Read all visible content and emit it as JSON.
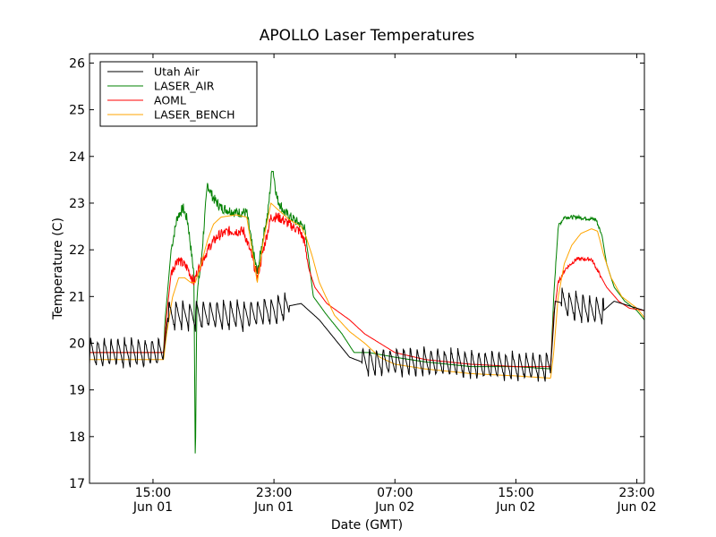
{
  "chart_data": {
    "type": "line",
    "title": "APOLLO Laser Temperatures",
    "xlabel": "Date (GMT)",
    "ylabel": "Temperature (C)",
    "ylim": [
      17,
      26.2
    ],
    "xlim_hours": [
      10.8,
      47.5
    ],
    "x_unit": "hours since Jun 01 00:00 GMT",
    "yticks": [
      17,
      18,
      19,
      20,
      21,
      22,
      23,
      24,
      25,
      26
    ],
    "xticks": [
      {
        "hour": 15,
        "time": "15:00",
        "date": "Jun 01"
      },
      {
        "hour": 23,
        "time": "23:00",
        "date": "Jun 01"
      },
      {
        "hour": 31,
        "time": "07:00",
        "date": "Jun 02"
      },
      {
        "hour": 39,
        "time": "15:00",
        "date": "Jun 02"
      },
      {
        "hour": 47,
        "time": "23:00",
        "date": "Jun 02"
      }
    ],
    "grid": false,
    "legend_position": "top-left",
    "series": [
      {
        "name": "Utah Air",
        "color": "#000000",
        "oscillation": {
          "amplitude": 0.6,
          "period_hours": 0.45,
          "ranges": [
            [
              10.8,
              15.7
            ],
            [
              16.0,
              24.0
            ],
            [
              28.8,
              41.3
            ],
            [
              42.0,
              44.8
            ]
          ]
        },
        "points": [
          [
            10.8,
            19.8
          ],
          [
            15.7,
            19.8
          ],
          [
            16.0,
            20.6
          ],
          [
            19.5,
            20.6
          ],
          [
            21.0,
            20.6
          ],
          [
            23.0,
            20.7
          ],
          [
            24.0,
            20.8
          ],
          [
            24.8,
            20.85
          ],
          [
            26.0,
            20.5
          ],
          [
            27.0,
            20.1
          ],
          [
            28.0,
            19.7
          ],
          [
            28.8,
            19.6
          ],
          [
            30.0,
            19.6
          ],
          [
            33.0,
            19.6
          ],
          [
            36.0,
            19.55
          ],
          [
            39.0,
            19.5
          ],
          [
            41.3,
            19.5
          ],
          [
            41.6,
            20.9
          ],
          [
            44.0,
            20.7
          ],
          [
            44.8,
            20.7
          ],
          [
            45.5,
            20.9
          ],
          [
            47.5,
            20.7
          ]
        ]
      },
      {
        "name": "LASER_AIR",
        "color": "#008000",
        "points": [
          [
            10.8,
            19.8
          ],
          [
            15.7,
            19.8
          ],
          [
            15.8,
            20.5
          ],
          [
            16.2,
            22.0
          ],
          [
            16.6,
            22.7
          ],
          [
            17.0,
            22.9
          ],
          [
            17.3,
            22.6
          ],
          [
            17.7,
            21.5
          ],
          [
            17.8,
            17.3
          ],
          [
            17.9,
            21.0
          ],
          [
            18.2,
            21.8
          ],
          [
            18.6,
            23.4
          ],
          [
            19.0,
            23.1
          ],
          [
            19.5,
            22.9
          ],
          [
            20.5,
            22.8
          ],
          [
            21.2,
            22.8
          ],
          [
            21.6,
            22.0
          ],
          [
            21.9,
            21.5
          ],
          [
            22.3,
            22.3
          ],
          [
            22.6,
            22.8
          ],
          [
            22.9,
            23.8
          ],
          [
            23.2,
            23.1
          ],
          [
            23.7,
            22.8
          ],
          [
            24.5,
            22.6
          ],
          [
            25.0,
            22.5
          ],
          [
            25.3,
            21.8
          ],
          [
            25.6,
            21.0
          ],
          [
            26.5,
            20.6
          ],
          [
            27.5,
            20.2
          ],
          [
            28.3,
            19.8
          ],
          [
            29.3,
            19.8
          ],
          [
            31.0,
            19.7
          ],
          [
            33.0,
            19.6
          ],
          [
            36.0,
            19.5
          ],
          [
            39.0,
            19.5
          ],
          [
            41.3,
            19.45
          ],
          [
            41.5,
            21.0
          ],
          [
            41.8,
            22.5
          ],
          [
            42.2,
            22.7
          ],
          [
            43.0,
            22.7
          ],
          [
            44.3,
            22.65
          ],
          [
            44.7,
            22.3
          ],
          [
            45.0,
            21.7
          ],
          [
            45.5,
            21.2
          ],
          [
            46.2,
            20.9
          ],
          [
            47.0,
            20.7
          ],
          [
            47.5,
            20.5
          ]
        ]
      },
      {
        "name": "AOML",
        "color": "#ff0000",
        "points": [
          [
            10.8,
            19.8
          ],
          [
            15.7,
            19.8
          ],
          [
            15.9,
            20.6
          ],
          [
            16.2,
            21.5
          ],
          [
            16.6,
            21.8
          ],
          [
            17.0,
            21.7
          ],
          [
            17.3,
            21.6
          ],
          [
            17.7,
            21.3
          ],
          [
            17.9,
            21.5
          ],
          [
            18.3,
            21.8
          ],
          [
            18.8,
            22.1
          ],
          [
            19.3,
            22.3
          ],
          [
            20.0,
            22.4
          ],
          [
            21.0,
            22.4
          ],
          [
            21.5,
            21.9
          ],
          [
            21.9,
            21.4
          ],
          [
            22.3,
            22.0
          ],
          [
            22.8,
            22.7
          ],
          [
            23.3,
            22.7
          ],
          [
            24.0,
            22.55
          ],
          [
            24.7,
            22.4
          ],
          [
            25.0,
            22.2
          ],
          [
            25.3,
            21.6
          ],
          [
            25.7,
            21.2
          ],
          [
            26.5,
            20.85
          ],
          [
            28.0,
            20.5
          ],
          [
            29.0,
            20.2
          ],
          [
            30.0,
            20.0
          ],
          [
            31.0,
            19.8
          ],
          [
            33.0,
            19.65
          ],
          [
            36.0,
            19.55
          ],
          [
            39.0,
            19.5
          ],
          [
            41.3,
            19.5
          ],
          [
            41.5,
            20.6
          ],
          [
            41.8,
            21.3
          ],
          [
            42.3,
            21.6
          ],
          [
            43.0,
            21.8
          ],
          [
            44.0,
            21.8
          ],
          [
            44.5,
            21.5
          ],
          [
            45.0,
            21.2
          ],
          [
            45.8,
            20.9
          ],
          [
            46.5,
            20.75
          ],
          [
            47.5,
            20.7
          ]
        ]
      },
      {
        "name": "LASER_BENCH",
        "color": "#ffa500",
        "points": [
          [
            10.8,
            19.65
          ],
          [
            15.7,
            19.65
          ],
          [
            15.9,
            20.2
          ],
          [
            16.3,
            21.0
          ],
          [
            16.7,
            21.4
          ],
          [
            17.1,
            21.4
          ],
          [
            17.5,
            21.3
          ],
          [
            17.8,
            21.3
          ],
          [
            18.2,
            21.7
          ],
          [
            18.6,
            22.2
          ],
          [
            19.0,
            22.55
          ],
          [
            19.5,
            22.7
          ],
          [
            20.5,
            22.75
          ],
          [
            21.2,
            22.7
          ],
          [
            21.6,
            21.9
          ],
          [
            21.9,
            21.3
          ],
          [
            22.3,
            22.2
          ],
          [
            22.8,
            23.0
          ],
          [
            23.3,
            22.85
          ],
          [
            24.0,
            22.65
          ],
          [
            24.8,
            22.5
          ],
          [
            25.1,
            22.3
          ],
          [
            25.5,
            21.9
          ],
          [
            26.0,
            21.3
          ],
          [
            27.0,
            20.6
          ],
          [
            28.0,
            20.25
          ],
          [
            29.0,
            20.0
          ],
          [
            30.0,
            19.7
          ],
          [
            31.0,
            19.55
          ],
          [
            33.0,
            19.45
          ],
          [
            36.0,
            19.35
          ],
          [
            39.0,
            19.3
          ],
          [
            41.3,
            19.25
          ],
          [
            41.5,
            19.8
          ],
          [
            41.8,
            21.0
          ],
          [
            42.2,
            21.7
          ],
          [
            42.7,
            22.1
          ],
          [
            43.3,
            22.35
          ],
          [
            44.0,
            22.45
          ],
          [
            44.4,
            22.4
          ],
          [
            44.8,
            21.9
          ],
          [
            45.3,
            21.4
          ],
          [
            46.0,
            21.0
          ],
          [
            47.0,
            20.75
          ],
          [
            47.5,
            20.55
          ]
        ]
      }
    ]
  }
}
